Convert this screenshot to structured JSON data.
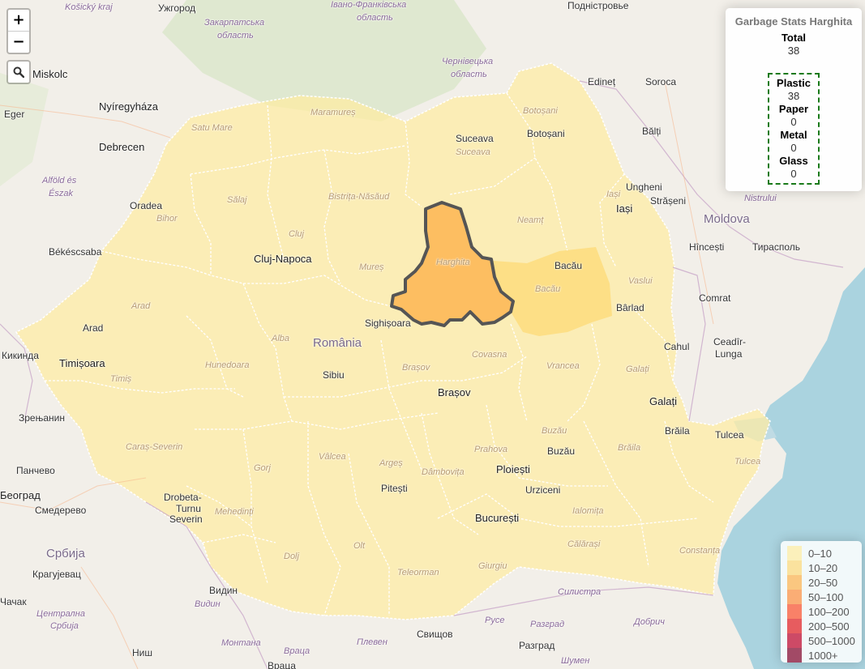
{
  "map": {
    "region_labels": [
      {
        "text": "Košický kraj",
        "cls": "italic",
        "x": 80,
        "y": 3
      },
      {
        "text": "Ужгород",
        "cls": "city",
        "x": 195,
        "y": 3
      },
      {
        "text": "Закарпатська",
        "cls": "italic",
        "x": 252,
        "y": 22
      },
      {
        "text": "область",
        "cls": "italic",
        "x": 268,
        "y": 38
      },
      {
        "text": "Івано-Франківська",
        "cls": "italic",
        "x": 408,
        "y": 0
      },
      {
        "text": "область",
        "cls": "italic",
        "x": 440,
        "y": 16
      },
      {
        "text": "Чернівецька",
        "cls": "italic",
        "x": 545,
        "y": 70
      },
      {
        "text": "область",
        "cls": "italic",
        "x": 556,
        "y": 86
      },
      {
        "text": "Подністровье",
        "cls": "city",
        "x": 700,
        "y": -3
      },
      {
        "text": "Edineț",
        "cls": "city",
        "x": 725,
        "y": 94
      },
      {
        "text": "Soroca",
        "cls": "city",
        "x": 796,
        "y": 94
      },
      {
        "text": "Miskolc",
        "cls": "big-city",
        "x": 40,
        "y": 84
      },
      {
        "text": "Eger",
        "cls": "city",
        "x": 5,
        "y": 134
      },
      {
        "text": "Nyíregyháza",
        "cls": "big-city",
        "x": 122,
        "y": 124
      },
      {
        "text": "Debrecen",
        "cls": "big-city",
        "x": 122,
        "y": 174
      },
      {
        "text": "Alföld és",
        "cls": "italic",
        "x": 52,
        "y": 217
      },
      {
        "text": "Észak",
        "cls": "italic",
        "x": 60,
        "y": 233
      },
      {
        "text": "Békéscsaba",
        "cls": "city",
        "x": 60,
        "y": 304
      },
      {
        "text": "Satu Mare",
        "cls": "region",
        "x": 236,
        "y": 152
      },
      {
        "text": "Maramureș",
        "cls": "region",
        "x": 383,
        "y": 133
      },
      {
        "text": "Botoșani",
        "cls": "region",
        "x": 645,
        "y": 131
      },
      {
        "text": "Botoșani",
        "cls": "city",
        "x": 650,
        "y": 158
      },
      {
        "text": "Suceava",
        "cls": "city",
        "x": 562,
        "y": 164
      },
      {
        "text": "Suceava",
        "cls": "region",
        "x": 562,
        "y": 182
      },
      {
        "text": "Bălți",
        "cls": "city",
        "x": 792,
        "y": 155
      },
      {
        "text": "Oradea",
        "cls": "city",
        "x": 160,
        "y": 247
      },
      {
        "text": "Bihor",
        "cls": "region",
        "x": 193,
        "y": 264
      },
      {
        "text": "Sălaj",
        "cls": "region",
        "x": 280,
        "y": 241
      },
      {
        "text": "Bistrița-Năsăud",
        "cls": "region",
        "x": 405,
        "y": 237
      },
      {
        "text": "Iași",
        "cls": "region",
        "x": 748,
        "y": 234
      },
      {
        "text": "Ungheni",
        "cls": "city",
        "x": 772,
        "y": 224
      },
      {
        "text": "Iași",
        "cls": "big-city",
        "x": 760,
        "y": 250
      },
      {
        "text": "Strășeni",
        "cls": "city",
        "x": 802,
        "y": 241
      },
      {
        "text": "Nistrului",
        "cls": "italic",
        "x": 918,
        "y": 239
      },
      {
        "text": "Moldova",
        "cls": "country",
        "x": 868,
        "y": 262
      },
      {
        "text": "Neamț",
        "cls": "region",
        "x": 638,
        "y": 266
      },
      {
        "text": "Cluj",
        "cls": "region",
        "x": 356,
        "y": 283
      },
      {
        "text": "Cluj-Napoca",
        "cls": "big-city",
        "x": 313,
        "y": 312
      },
      {
        "text": "Hîncești",
        "cls": "city",
        "x": 850,
        "y": 298
      },
      {
        "text": "Тирасполь",
        "cls": "city",
        "x": 928,
        "y": 298
      },
      {
        "text": "Mureș",
        "cls": "region",
        "x": 443,
        "y": 324
      },
      {
        "text": "Harghita",
        "cls": "region",
        "x": 538,
        "y": 318
      },
      {
        "text": "Bacău",
        "cls": "city",
        "x": 684,
        "y": 321
      },
      {
        "text": "Bacău",
        "cls": "region",
        "x": 660,
        "y": 351
      },
      {
        "text": "Vaslui",
        "cls": "region",
        "x": 775,
        "y": 341
      },
      {
        "text": "Arad",
        "cls": "region",
        "x": 162,
        "y": 372
      },
      {
        "text": "Arad",
        "cls": "city",
        "x": 102,
        "y": 398
      },
      {
        "text": "Bârlad",
        "cls": "city",
        "x": 760,
        "y": 373
      },
      {
        "text": "Comrat",
        "cls": "city",
        "x": 862,
        "y": 361
      },
      {
        "text": "Sighișoara",
        "cls": "city",
        "x": 450,
        "y": 392
      },
      {
        "text": "Alba",
        "cls": "region",
        "x": 335,
        "y": 412
      },
      {
        "text": "România",
        "cls": "country",
        "x": 386,
        "y": 415
      },
      {
        "text": "Cahul",
        "cls": "city",
        "x": 819,
        "y": 421
      },
      {
        "text": "Ceadîr-",
        "cls": "city",
        "x": 880,
        "y": 415
      },
      {
        "text": "Lunga",
        "cls": "city",
        "x": 882,
        "y": 430
      },
      {
        "text": "Кикинда",
        "cls": "city",
        "x": 2,
        "y": 432
      },
      {
        "text": "Timișoara",
        "cls": "big-city",
        "x": 73,
        "y": 441
      },
      {
        "text": "Hunedoara",
        "cls": "region",
        "x": 253,
        "y": 445
      },
      {
        "text": "Covasna",
        "cls": "region",
        "x": 582,
        "y": 432
      },
      {
        "text": "Sibiu",
        "cls": "city",
        "x": 398,
        "y": 456
      },
      {
        "text": "Brașov",
        "cls": "region",
        "x": 496,
        "y": 448
      },
      {
        "text": "Vrancea",
        "cls": "region",
        "x": 674,
        "y": 446
      },
      {
        "text": "Galați",
        "cls": "region",
        "x": 772,
        "y": 450
      },
      {
        "text": "Timiș",
        "cls": "region",
        "x": 136,
        "y": 462
      },
      {
        "text": "Brașov",
        "cls": "big-city",
        "x": 540,
        "y": 477
      },
      {
        "text": "Galați",
        "cls": "big-city",
        "x": 801,
        "y": 488
      },
      {
        "text": "Зрењанин",
        "cls": "city",
        "x": 23,
        "y": 509
      },
      {
        "text": "Brăila",
        "cls": "city",
        "x": 820,
        "y": 525
      },
      {
        "text": "Tulcea",
        "cls": "city",
        "x": 882,
        "y": 530
      },
      {
        "text": "Buzău",
        "cls": "region",
        "x": 668,
        "y": 526
      },
      {
        "text": "Caraș-Severin",
        "cls": "region",
        "x": 155,
        "y": 546
      },
      {
        "text": "Prahova",
        "cls": "region",
        "x": 585,
        "y": 549
      },
      {
        "text": "Buzău",
        "cls": "city",
        "x": 675,
        "y": 550
      },
      {
        "text": "Brăila",
        "cls": "region",
        "x": 762,
        "y": 547
      },
      {
        "text": "Vâlcea",
        "cls": "region",
        "x": 393,
        "y": 558
      },
      {
        "text": "Tulcea",
        "cls": "region",
        "x": 906,
        "y": 564
      },
      {
        "text": "Gorj",
        "cls": "region",
        "x": 313,
        "y": 572
      },
      {
        "text": "Argeș",
        "cls": "region",
        "x": 468,
        "y": 566
      },
      {
        "text": "Dâmbovița",
        "cls": "region",
        "x": 520,
        "y": 577
      },
      {
        "text": "Ploiești",
        "cls": "big-city",
        "x": 612,
        "y": 572
      },
      {
        "text": "Панчево",
        "cls": "city",
        "x": 20,
        "y": 574
      },
      {
        "text": "Београд",
        "cls": "big-city",
        "x": 0,
        "y": 604
      },
      {
        "text": "Pitești",
        "cls": "city",
        "x": 470,
        "y": 596
      },
      {
        "text": "Urziceni",
        "cls": "city",
        "x": 648,
        "y": 598
      },
      {
        "text": "Drobeta-",
        "cls": "city",
        "x": 202,
        "y": 607
      },
      {
        "text": "Turnu",
        "cls": "city",
        "x": 217,
        "y": 621
      },
      {
        "text": "Severin",
        "cls": "city",
        "x": 209,
        "y": 634
      },
      {
        "text": "Mehedinți",
        "cls": "region",
        "x": 265,
        "y": 626
      },
      {
        "text": "Смедерево",
        "cls": "city",
        "x": 43,
        "y": 623
      },
      {
        "text": "Ialomița",
        "cls": "region",
        "x": 706,
        "y": 625
      },
      {
        "text": "București",
        "cls": "big-city",
        "x": 586,
        "y": 632
      },
      {
        "text": "Србија",
        "cls": "country",
        "x": 57,
        "y": 675
      },
      {
        "text": "Olt",
        "cls": "region",
        "x": 436,
        "y": 668
      },
      {
        "text": "Dolj",
        "cls": "region",
        "x": 350,
        "y": 681
      },
      {
        "text": "Călărași",
        "cls": "region",
        "x": 700,
        "y": 666
      },
      {
        "text": "Constanța",
        "cls": "region",
        "x": 838,
        "y": 674
      },
      {
        "text": "Giurgiu",
        "cls": "region",
        "x": 590,
        "y": 693
      },
      {
        "text": "Крагујевац",
        "cls": "city",
        "x": 40,
        "y": 702
      },
      {
        "text": "Teleorman",
        "cls": "region",
        "x": 490,
        "y": 701
      },
      {
        "text": "Видин",
        "cls": "city",
        "x": 258,
        "y": 722
      },
      {
        "text": "Силистра",
        "cls": "italic",
        "x": 688,
        "y": 725
      },
      {
        "text": "Чачак",
        "cls": "city",
        "x": 0,
        "y": 736
      },
      {
        "text": "Видин",
        "cls": "italic",
        "x": 240,
        "y": 740
      },
      {
        "text": "Централна",
        "cls": "italic",
        "x": 45,
        "y": 752
      },
      {
        "text": "Србија",
        "cls": "italic",
        "x": 62,
        "y": 767
      },
      {
        "text": "Русе",
        "cls": "italic",
        "x": 598,
        "y": 760
      },
      {
        "text": "Разград",
        "cls": "italic",
        "x": 654,
        "y": 765
      },
      {
        "text": "Добрич",
        "cls": "italic",
        "x": 782,
        "y": 762
      },
      {
        "text": "Свищов",
        "cls": "city",
        "x": 514,
        "y": 776
      },
      {
        "text": "Монтана",
        "cls": "italic",
        "x": 273,
        "y": 788
      },
      {
        "text": "Плевен",
        "cls": "italic",
        "x": 440,
        "y": 787
      },
      {
        "text": "Разград",
        "cls": "city",
        "x": 640,
        "y": 790
      },
      {
        "text": "Враца",
        "cls": "italic",
        "x": 350,
        "y": 798
      },
      {
        "text": "Ниш",
        "cls": "city",
        "x": 163,
        "y": 799
      },
      {
        "text": "Шумен",
        "cls": "italic",
        "x": 692,
        "y": 810
      },
      {
        "text": "Враца",
        "cls": "city",
        "x": 330,
        "y": 815
      }
    ]
  },
  "controls": {
    "zoom_in": "+",
    "zoom_out": "−"
  },
  "info": {
    "title": "Garbage Stats Harghita",
    "total_label": "Total",
    "total_value": "38",
    "types": [
      {
        "label": "Plastic",
        "value": "38"
      },
      {
        "label": "Paper",
        "value": "0"
      },
      {
        "label": "Metal",
        "value": "0"
      },
      {
        "label": "Glass",
        "value": "0"
      }
    ]
  },
  "legend": {
    "items": [
      {
        "label": "0–10",
        "color": "#FFEDA0"
      },
      {
        "label": "10–20",
        "color": "#FED976"
      },
      {
        "label": "20–50",
        "color": "#FEB24C"
      },
      {
        "label": "50–100",
        "color": "#FD8D3C"
      },
      {
        "label": "100–200",
        "color": "#FC4E2A"
      },
      {
        "label": "200–500",
        "color": "#E31A1C"
      },
      {
        "label": "500–1000",
        "color": "#BD0026"
      },
      {
        "label": "1000+",
        "color": "#800026"
      }
    ]
  },
  "colors": {
    "romania_fill": "#FFEDA0",
    "highlight_fill": "#FEB24C",
    "neighbor_fill": "#FED976",
    "border": "#1a7a1a"
  }
}
